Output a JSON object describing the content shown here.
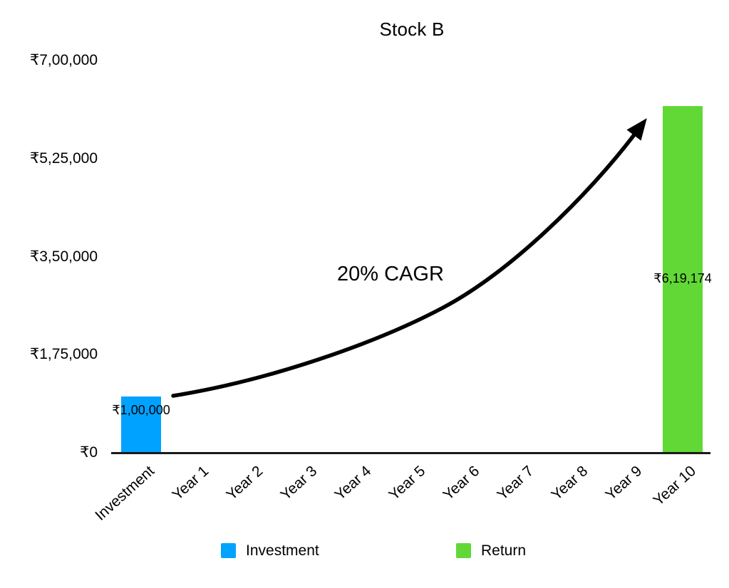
{
  "chart_data": {
    "type": "bar",
    "title": "Stock B",
    "currency_symbol": "₹",
    "categories": [
      "Investment",
      "Year 1",
      "Year 2",
      "Year 3",
      "Year 4",
      "Year 5",
      "Year 6",
      "Year 7",
      "Year 8",
      "Year 9",
      "Year 10"
    ],
    "series": [
      {
        "name": "Investment",
        "color": "#00A2FF",
        "values": [
          100000,
          0,
          0,
          0,
          0,
          0,
          0,
          0,
          0,
          0,
          0
        ]
      },
      {
        "name": "Return",
        "color": "#61D836",
        "values": [
          0,
          0,
          0,
          0,
          0,
          0,
          0,
          0,
          0,
          0,
          619174
        ]
      }
    ],
    "bar_labels": [
      {
        "category": "Investment",
        "text": "₹1,00,000"
      },
      {
        "category": "Year 10",
        "text": "₹6,19,174"
      }
    ],
    "y_axis": {
      "min": 0,
      "max": 700000,
      "tick_values": [
        0,
        175000,
        350000,
        525000,
        700000
      ],
      "tick_labels": [
        "₹0",
        "₹1,75,000",
        "₹3,50,000",
        "₹5,25,000",
        "₹7,00,000"
      ]
    },
    "x_axis": {
      "label_rotation_deg": -42
    },
    "annotation": {
      "text": "20% CAGR"
    },
    "legend": [
      {
        "label": "Investment",
        "color": "#00A2FF"
      },
      {
        "label": "Return",
        "color": "#61D836"
      }
    ],
    "grid": "off",
    "legend_position": "bottom",
    "text_color": "#000000",
    "axis_color": "#1a1a1a",
    "arrow_color": "#000000"
  }
}
